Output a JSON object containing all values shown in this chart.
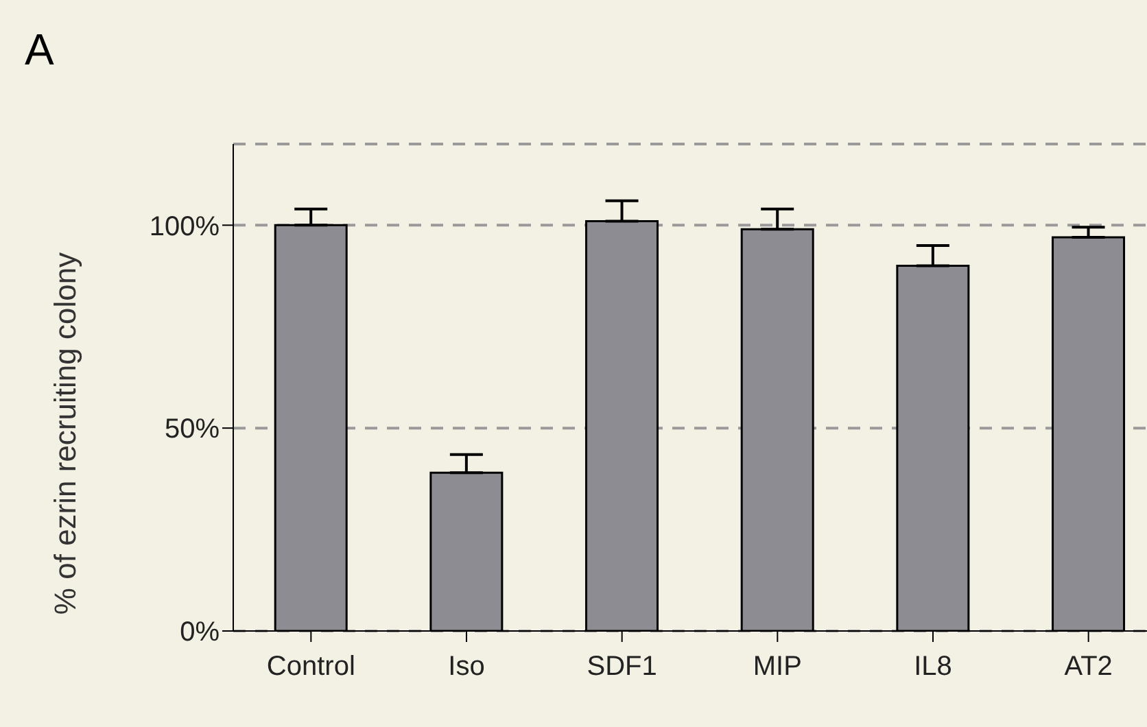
{
  "chart_data": {
    "type": "bar",
    "title": "A",
    "ylabel": "% of ezrin recruiting colony",
    "categories": [
      "Control",
      "Iso",
      "SDF1",
      "MIP",
      "IL8",
      "AT2"
    ],
    "values": [
      100,
      39,
      101,
      99,
      90,
      97
    ],
    "errors": [
      [
        100,
        104
      ],
      [
        39,
        43.5
      ],
      [
        101,
        106
      ],
      [
        99,
        104
      ],
      [
        90,
        95
      ],
      [
        97,
        99.5
      ]
    ],
    "color": "#8c8c92",
    "ylim": [
      0,
      120
    ],
    "yticks": [
      {
        "value": 0,
        "label": "0%"
      },
      {
        "value": 50,
        "label": "50%"
      },
      {
        "value": 100,
        "label": "100%"
      }
    ],
    "grid": "y"
  }
}
